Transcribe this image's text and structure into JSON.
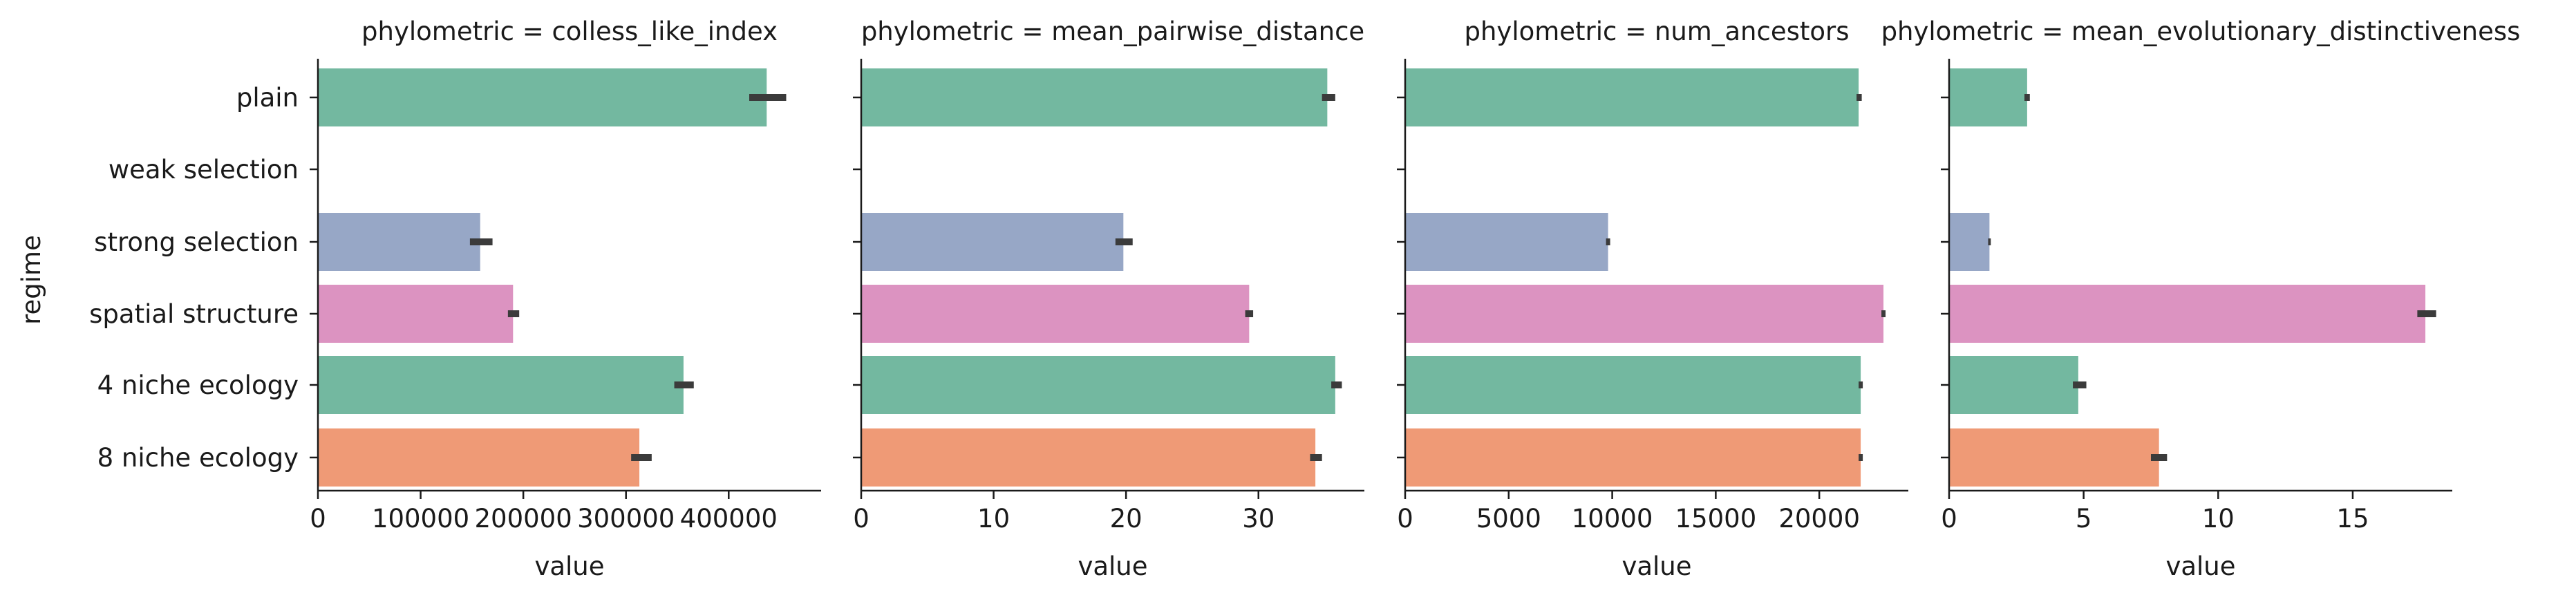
{
  "figure": {
    "ylabel": "regime",
    "colors": {
      "plain": "#73b8a0",
      "weak selection": "#ef9a76",
      "strong selection": "#97a7c6",
      "spatial structure": "#dc93c1",
      "4 niche ecology": "#73b8a0",
      "8 niche ecology": "#ef9a76",
      "errorbar": "#3b3b3b",
      "axis": "#1a1a1a"
    }
  },
  "chart_data": [
    {
      "type": "bar",
      "orientation": "horizontal",
      "title": "phylometric = colless_like_index",
      "xlabel": "value",
      "ylabel": "regime",
      "categories": [
        "plain",
        "weak selection",
        "strong selection",
        "spatial structure",
        "4 niche ecology",
        "8 niche ecology"
      ],
      "values": [
        437000,
        null,
        158000,
        190000,
        356000,
        313000
      ],
      "ci": [
        [
          420000,
          456000
        ],
        null,
        [
          148000,
          170000
        ],
        [
          185000,
          196000
        ],
        [
          347000,
          366000
        ],
        [
          305000,
          325000
        ]
      ],
      "xlim": [
        0,
        490000
      ],
      "xticks": [
        0,
        100000,
        200000,
        300000,
        400000
      ],
      "xticklabels": [
        "0",
        "100000",
        "200000",
        "300000",
        "400000"
      ]
    },
    {
      "type": "bar",
      "orientation": "horizontal",
      "title": "phylometric = mean_pairwise_distance",
      "xlabel": "value",
      "ylabel": "",
      "categories": [
        "plain",
        "weak selection",
        "strong selection",
        "spatial structure",
        "4 niche ecology",
        "8 niche ecology"
      ],
      "values": [
        35.2,
        null,
        19.8,
        29.3,
        35.8,
        34.3
      ],
      "ci": [
        [
          34.8,
          35.8
        ],
        null,
        [
          19.2,
          20.5
        ],
        [
          29.0,
          29.6
        ],
        [
          35.5,
          36.3
        ],
        [
          33.9,
          34.8
        ]
      ],
      "xlim": [
        0,
        38
      ],
      "xticks": [
        0,
        10,
        20,
        30
      ],
      "xticklabels": [
        "0",
        "10",
        "20",
        "30"
      ]
    },
    {
      "type": "bar",
      "orientation": "horizontal",
      "title": "phylometric = num_ancestors",
      "xlabel": "value",
      "ylabel": "",
      "categories": [
        "plain",
        "weak selection",
        "strong selection",
        "spatial structure",
        "4 niche ecology",
        "8 niche ecology"
      ],
      "values": [
        21900,
        null,
        9800,
        23100,
        22000,
        22000
      ],
      "ci": [
        [
          21800,
          22050
        ],
        null,
        [
          9700,
          9900
        ],
        [
          23000,
          23200
        ],
        [
          21900,
          22100
        ],
        [
          21900,
          22100
        ]
      ],
      "xlim": [
        0,
        24300
      ],
      "xticks": [
        0,
        5000,
        10000,
        15000,
        20000
      ],
      "xticklabels": [
        "0",
        "5000",
        "10000",
        "15000",
        "20000"
      ]
    },
    {
      "type": "bar",
      "orientation": "horizontal",
      "title": "phylometric = mean_evolutionary_distinctiveness",
      "xlabel": "value",
      "ylabel": "",
      "categories": [
        "plain",
        "weak selection",
        "strong selection",
        "spatial structure",
        "4 niche ecology",
        "8 niche ecology"
      ],
      "values": [
        2.9,
        null,
        1.5,
        17.7,
        4.8,
        7.8
      ],
      "ci": [
        [
          2.8,
          3.0
        ],
        null,
        [
          1.45,
          1.55
        ],
        [
          17.4,
          18.1
        ],
        [
          4.6,
          5.1
        ],
        [
          7.5,
          8.1
        ]
      ],
      "xlim": [
        0,
        18.7
      ],
      "xticks": [
        0,
        5,
        10,
        15
      ],
      "xticklabels": [
        "0",
        "5",
        "10",
        "15"
      ]
    }
  ]
}
